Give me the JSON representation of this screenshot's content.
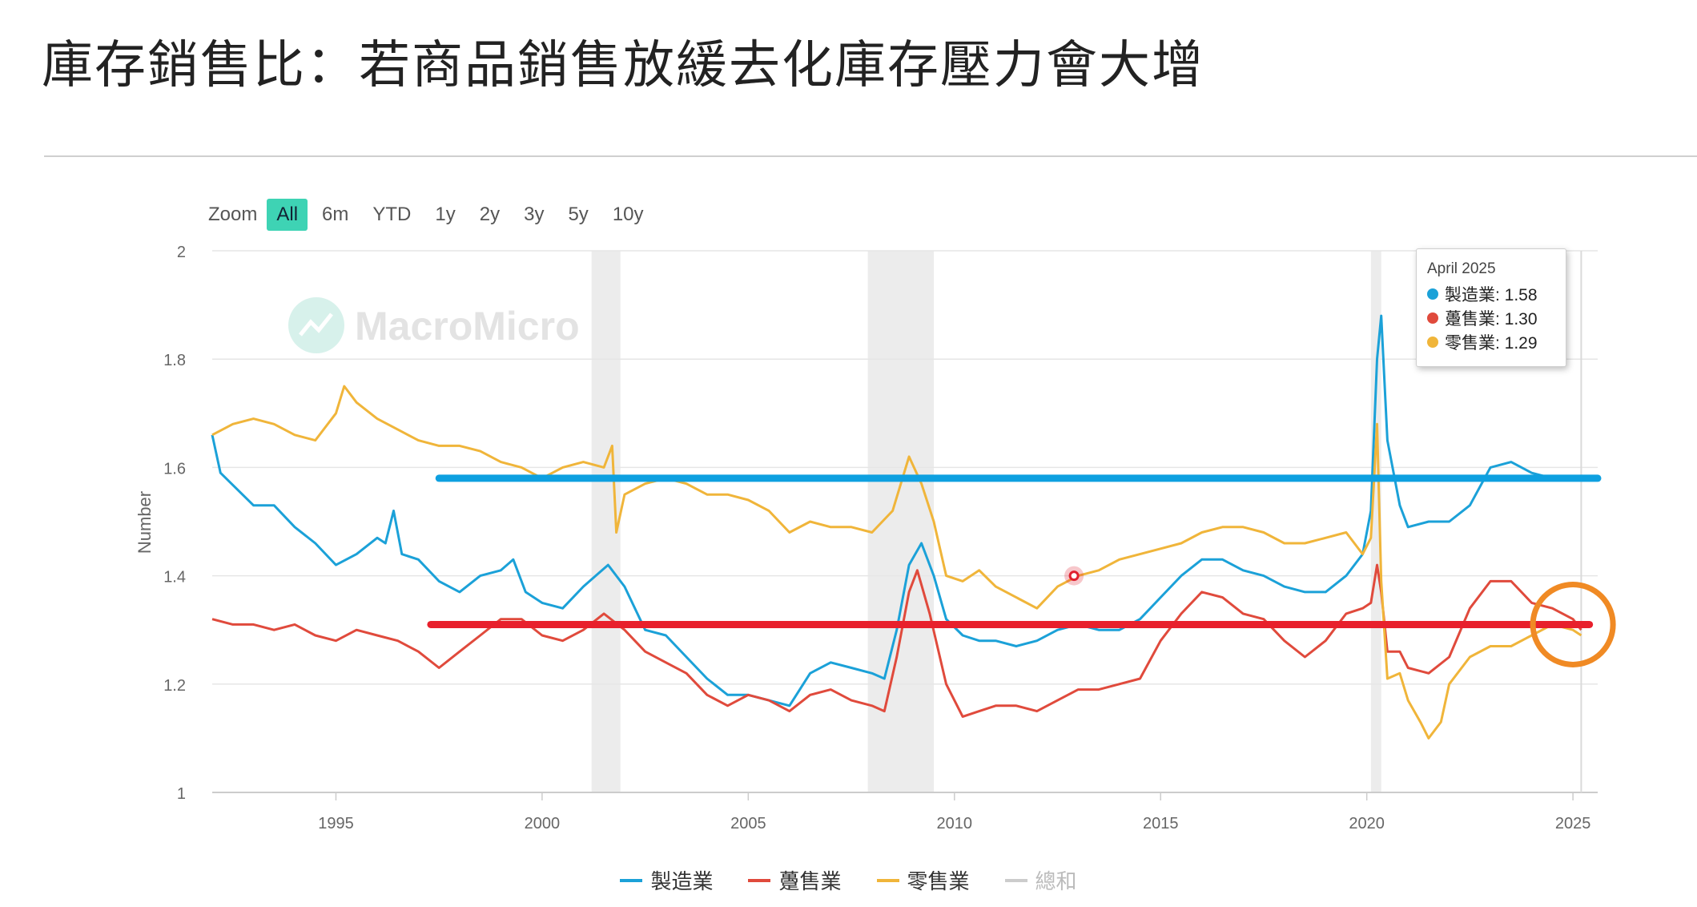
{
  "page": {
    "title": "庫存銷售比：若商品銷售放緩去化庫存壓力會大增"
  },
  "zoom": {
    "label": "Zoom",
    "buttons": [
      "All",
      "6m",
      "YTD",
      "1y",
      "2y",
      "3y",
      "5y",
      "10y"
    ],
    "active": "All"
  },
  "watermark": "MacroMicro",
  "tooltip": {
    "date": "April 2025",
    "rows": [
      {
        "label": "製造業: 1.58",
        "color": "#1ba1d8"
      },
      {
        "label": "躉售業: 1.30",
        "color": "#e04a3c"
      },
      {
        "label": "零售業: 1.29",
        "color": "#f0b53a"
      }
    ]
  },
  "legend": [
    {
      "label": "製造業",
      "color": "#1ba1d8",
      "visible": true
    },
    {
      "label": "躉售業",
      "color": "#e04a3c",
      "visible": true
    },
    {
      "label": "零售業",
      "color": "#f0b53a",
      "visible": true
    },
    {
      "label": "總和",
      "color": "#cccccc",
      "visible": false
    }
  ],
  "chart_data": {
    "type": "line",
    "title": "",
    "xlabel": "",
    "ylabel": "Number",
    "xlim": [
      1992.0,
      2025.6
    ],
    "ylim": [
      1,
      2
    ],
    "yticks": [
      "1",
      "1.2",
      "1.4",
      "1.6",
      "1.8",
      "2"
    ],
    "xticks": [
      "1995",
      "2000",
      "2005",
      "2010",
      "2015",
      "2020",
      "2025"
    ],
    "grid": true,
    "recession_bands": [
      [
        2001.2,
        2001.9
      ],
      [
        2007.9,
        2009.5
      ],
      [
        2020.1,
        2020.35
      ]
    ],
    "annotations": {
      "manufacturing_level_line": {
        "y": 1.58,
        "x_start": 1997.5,
        "x_end": 2025.6,
        "color": "#0ea0e0"
      },
      "wholesale_level_line": {
        "y": 1.31,
        "x_start": 1997.3,
        "x_end": 2025.4,
        "color": "#e8202c"
      },
      "highlight_circle": {
        "x": 2025.0,
        "y": 1.31,
        "color": "#f08a24"
      },
      "highlight_dot": {
        "x": 2012.9,
        "y": 1.4,
        "color": "#e02030"
      }
    },
    "series": [
      {
        "name": "製造業",
        "color": "#1ba1d8",
        "points": [
          [
            1992.0,
            1.66
          ],
          [
            1992.2,
            1.59
          ],
          [
            1992.6,
            1.56
          ],
          [
            1993.0,
            1.53
          ],
          [
            1993.5,
            1.53
          ],
          [
            1994.0,
            1.49
          ],
          [
            1994.5,
            1.46
          ],
          [
            1995.0,
            1.42
          ],
          [
            1995.5,
            1.44
          ],
          [
            1996.0,
            1.47
          ],
          [
            1996.2,
            1.46
          ],
          [
            1996.4,
            1.52
          ],
          [
            1996.6,
            1.44
          ],
          [
            1997.0,
            1.43
          ],
          [
            1997.5,
            1.39
          ],
          [
            1998.0,
            1.37
          ],
          [
            1998.5,
            1.4
          ],
          [
            1999.0,
            1.41
          ],
          [
            1999.3,
            1.43
          ],
          [
            1999.6,
            1.37
          ],
          [
            2000.0,
            1.35
          ],
          [
            2000.5,
            1.34
          ],
          [
            2001.0,
            1.38
          ],
          [
            2001.3,
            1.4
          ],
          [
            2001.6,
            1.42
          ],
          [
            2002.0,
            1.38
          ],
          [
            2002.5,
            1.3
          ],
          [
            2003.0,
            1.29
          ],
          [
            2003.5,
            1.25
          ],
          [
            2004.0,
            1.21
          ],
          [
            2004.5,
            1.18
          ],
          [
            2005.0,
            1.18
          ],
          [
            2005.5,
            1.17
          ],
          [
            2006.0,
            1.16
          ],
          [
            2006.5,
            1.22
          ],
          [
            2007.0,
            1.24
          ],
          [
            2007.5,
            1.23
          ],
          [
            2008.0,
            1.22
          ],
          [
            2008.3,
            1.21
          ],
          [
            2008.6,
            1.3
          ],
          [
            2008.9,
            1.42
          ],
          [
            2009.2,
            1.46
          ],
          [
            2009.5,
            1.4
          ],
          [
            2009.8,
            1.32
          ],
          [
            2010.2,
            1.29
          ],
          [
            2010.6,
            1.28
          ],
          [
            2011.0,
            1.28
          ],
          [
            2011.5,
            1.27
          ],
          [
            2012.0,
            1.28
          ],
          [
            2012.5,
            1.3
          ],
          [
            2013.0,
            1.31
          ],
          [
            2013.5,
            1.3
          ],
          [
            2014.0,
            1.3
          ],
          [
            2014.5,
            1.32
          ],
          [
            2015.0,
            1.36
          ],
          [
            2015.5,
            1.4
          ],
          [
            2016.0,
            1.43
          ],
          [
            2016.5,
            1.43
          ],
          [
            2017.0,
            1.41
          ],
          [
            2017.5,
            1.4
          ],
          [
            2018.0,
            1.38
          ],
          [
            2018.5,
            1.37
          ],
          [
            2019.0,
            1.37
          ],
          [
            2019.5,
            1.4
          ],
          [
            2019.9,
            1.44
          ],
          [
            2020.1,
            1.52
          ],
          [
            2020.25,
            1.8
          ],
          [
            2020.35,
            1.88
          ],
          [
            2020.5,
            1.65
          ],
          [
            2020.8,
            1.53
          ],
          [
            2021.0,
            1.49
          ],
          [
            2021.5,
            1.5
          ],
          [
            2022.0,
            1.5
          ],
          [
            2022.5,
            1.53
          ],
          [
            2023.0,
            1.6
          ],
          [
            2023.5,
            1.61
          ],
          [
            2024.0,
            1.59
          ],
          [
            2024.5,
            1.58
          ],
          [
            2025.0,
            1.58
          ],
          [
            2025.2,
            1.58
          ]
        ]
      },
      {
        "name": "躉售業",
        "color": "#e04a3c",
        "points": [
          [
            1992.0,
            1.32
          ],
          [
            1992.5,
            1.31
          ],
          [
            1993.0,
            1.31
          ],
          [
            1993.5,
            1.3
          ],
          [
            1994.0,
            1.31
          ],
          [
            1994.5,
            1.29
          ],
          [
            1995.0,
            1.28
          ],
          [
            1995.5,
            1.3
          ],
          [
            1996.0,
            1.29
          ],
          [
            1996.5,
            1.28
          ],
          [
            1997.0,
            1.26
          ],
          [
            1997.5,
            1.23
          ],
          [
            1998.0,
            1.26
          ],
          [
            1998.5,
            1.29
          ],
          [
            1999.0,
            1.32
          ],
          [
            1999.5,
            1.32
          ],
          [
            2000.0,
            1.29
          ],
          [
            2000.5,
            1.28
          ],
          [
            2001.0,
            1.3
          ],
          [
            2001.5,
            1.33
          ],
          [
            2002.0,
            1.3
          ],
          [
            2002.5,
            1.26
          ],
          [
            2003.0,
            1.24
          ],
          [
            2003.5,
            1.22
          ],
          [
            2004.0,
            1.18
          ],
          [
            2004.5,
            1.16
          ],
          [
            2005.0,
            1.18
          ],
          [
            2005.5,
            1.17
          ],
          [
            2006.0,
            1.15
          ],
          [
            2006.5,
            1.18
          ],
          [
            2007.0,
            1.19
          ],
          [
            2007.5,
            1.17
          ],
          [
            2008.0,
            1.16
          ],
          [
            2008.3,
            1.15
          ],
          [
            2008.6,
            1.25
          ],
          [
            2008.9,
            1.37
          ],
          [
            2009.1,
            1.41
          ],
          [
            2009.4,
            1.33
          ],
          [
            2009.8,
            1.2
          ],
          [
            2010.2,
            1.14
          ],
          [
            2010.6,
            1.15
          ],
          [
            2011.0,
            1.16
          ],
          [
            2011.5,
            1.16
          ],
          [
            2012.0,
            1.15
          ],
          [
            2012.5,
            1.17
          ],
          [
            2013.0,
            1.19
          ],
          [
            2013.5,
            1.19
          ],
          [
            2014.0,
            1.2
          ],
          [
            2014.5,
            1.21
          ],
          [
            2015.0,
            1.28
          ],
          [
            2015.5,
            1.33
          ],
          [
            2016.0,
            1.37
          ],
          [
            2016.5,
            1.36
          ],
          [
            2017.0,
            1.33
          ],
          [
            2017.5,
            1.32
          ],
          [
            2018.0,
            1.28
          ],
          [
            2018.5,
            1.25
          ],
          [
            2019.0,
            1.28
          ],
          [
            2019.5,
            1.33
          ],
          [
            2019.9,
            1.34
          ],
          [
            2020.1,
            1.35
          ],
          [
            2020.25,
            1.42
          ],
          [
            2020.35,
            1.37
          ],
          [
            2020.5,
            1.26
          ],
          [
            2020.8,
            1.26
          ],
          [
            2021.0,
            1.23
          ],
          [
            2021.5,
            1.22
          ],
          [
            2022.0,
            1.25
          ],
          [
            2022.5,
            1.34
          ],
          [
            2023.0,
            1.39
          ],
          [
            2023.5,
            1.39
          ],
          [
            2024.0,
            1.35
          ],
          [
            2024.5,
            1.34
          ],
          [
            2025.0,
            1.32
          ],
          [
            2025.2,
            1.3
          ]
        ]
      },
      {
        "name": "零售業",
        "color": "#f0b53a",
        "points": [
          [
            1992.0,
            1.66
          ],
          [
            1992.5,
            1.68
          ],
          [
            1993.0,
            1.69
          ],
          [
            1993.5,
            1.68
          ],
          [
            1994.0,
            1.66
          ],
          [
            1994.5,
            1.65
          ],
          [
            1995.0,
            1.7
          ],
          [
            1995.2,
            1.75
          ],
          [
            1995.5,
            1.72
          ],
          [
            1996.0,
            1.69
          ],
          [
            1996.5,
            1.67
          ],
          [
            1997.0,
            1.65
          ],
          [
            1997.5,
            1.64
          ],
          [
            1998.0,
            1.64
          ],
          [
            1998.5,
            1.63
          ],
          [
            1999.0,
            1.61
          ],
          [
            1999.5,
            1.6
          ],
          [
            2000.0,
            1.58
          ],
          [
            2000.5,
            1.6
          ],
          [
            2001.0,
            1.61
          ],
          [
            2001.5,
            1.6
          ],
          [
            2001.7,
            1.64
          ],
          [
            2001.8,
            1.48
          ],
          [
            2002.0,
            1.55
          ],
          [
            2002.5,
            1.57
          ],
          [
            2003.0,
            1.58
          ],
          [
            2003.5,
            1.57
          ],
          [
            2004.0,
            1.55
          ],
          [
            2004.5,
            1.55
          ],
          [
            2005.0,
            1.54
          ],
          [
            2005.5,
            1.52
          ],
          [
            2006.0,
            1.48
          ],
          [
            2006.5,
            1.5
          ],
          [
            2007.0,
            1.49
          ],
          [
            2007.5,
            1.49
          ],
          [
            2008.0,
            1.48
          ],
          [
            2008.5,
            1.52
          ],
          [
            2008.9,
            1.62
          ],
          [
            2009.2,
            1.57
          ],
          [
            2009.5,
            1.5
          ],
          [
            2009.8,
            1.4
          ],
          [
            2010.2,
            1.39
          ],
          [
            2010.6,
            1.41
          ],
          [
            2011.0,
            1.38
          ],
          [
            2011.5,
            1.36
          ],
          [
            2012.0,
            1.34
          ],
          [
            2012.5,
            1.38
          ],
          [
            2013.0,
            1.4
          ],
          [
            2013.5,
            1.41
          ],
          [
            2014.0,
            1.43
          ],
          [
            2014.5,
            1.44
          ],
          [
            2015.0,
            1.45
          ],
          [
            2015.5,
            1.46
          ],
          [
            2016.0,
            1.48
          ],
          [
            2016.5,
            1.49
          ],
          [
            2017.0,
            1.49
          ],
          [
            2017.5,
            1.48
          ],
          [
            2018.0,
            1.46
          ],
          [
            2018.5,
            1.46
          ],
          [
            2019.0,
            1.47
          ],
          [
            2019.5,
            1.48
          ],
          [
            2019.9,
            1.44
          ],
          [
            2020.1,
            1.47
          ],
          [
            2020.25,
            1.68
          ],
          [
            2020.35,
            1.39
          ],
          [
            2020.5,
            1.21
          ],
          [
            2020.8,
            1.22
          ],
          [
            2021.0,
            1.17
          ],
          [
            2021.3,
            1.13
          ],
          [
            2021.5,
            1.1
          ],
          [
            2021.8,
            1.13
          ],
          [
            2022.0,
            1.2
          ],
          [
            2022.5,
            1.25
          ],
          [
            2023.0,
            1.27
          ],
          [
            2023.5,
            1.27
          ],
          [
            2024.0,
            1.29
          ],
          [
            2024.5,
            1.31
          ],
          [
            2025.0,
            1.3
          ],
          [
            2025.2,
            1.29
          ]
        ]
      }
    ]
  }
}
